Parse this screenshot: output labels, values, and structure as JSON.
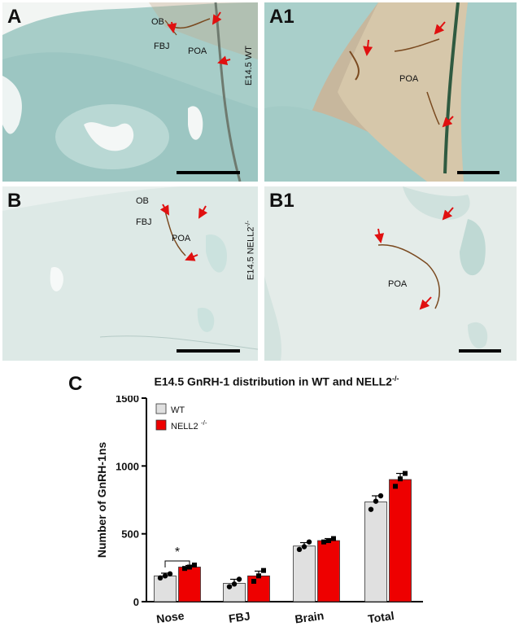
{
  "panels": {
    "A": {
      "letter": "A",
      "labels": {
        "ob": "OB",
        "fbj": "FBJ",
        "poa": "POA"
      },
      "side_label": "E14.5 WT"
    },
    "A1": {
      "letter": "A1",
      "labels": {
        "poa": "POA"
      }
    },
    "B": {
      "letter": "B",
      "labels": {
        "ob": "OB",
        "fbj": "FBJ",
        "poa": "POA"
      },
      "side_label": "E14.5 NELL2",
      "side_label_sup": "-/-"
    },
    "B1": {
      "letter": "B1",
      "labels": {
        "poa": "POA"
      }
    }
  },
  "colors": {
    "tissue_teal": "#9cc6c2",
    "tissue_pale": "#c9dedb",
    "background_pale": "#eef4f3",
    "stain_brown": "#7a4a20",
    "arrow_red": "#e01010",
    "wt_bar": "#e0e0e0",
    "nell2_bar": "#ee0000"
  },
  "chart": {
    "letter": "C",
    "title_main": "E14.5 GnRH-1 distribution in WT and NELL2",
    "title_sup": "-/-"
  },
  "chart_data": {
    "type": "bar",
    "title": "E14.5 GnRH-1 distribution in WT and NELL2 -/-",
    "ylabel": "Number of GnRH-1ns",
    "xlabel": "",
    "categories": [
      "Nose",
      "FBJ",
      "Brain",
      "Total"
    ],
    "ylim": [
      0,
      1500
    ],
    "yticks": [
      0,
      500,
      1000,
      1500
    ],
    "series": [
      {
        "name": "WT",
        "values": [
          190,
          135,
          410,
          735
        ],
        "errors": [
          20,
          30,
          25,
          45
        ],
        "points": [
          [
            175,
            205,
            190
          ],
          [
            110,
            165,
            130
          ],
          [
            385,
            440,
            405
          ],
          [
            680,
            780,
            740
          ]
        ]
      },
      {
        "name": "NELL2-/-",
        "values": [
          255,
          190,
          450,
          900
        ],
        "errors": [
          12,
          35,
          15,
          45
        ],
        "points": [
          [
            245,
            270,
            255
          ],
          [
            150,
            230,
            190
          ],
          [
            440,
            465,
            450
          ],
          [
            850,
            945,
            905
          ]
        ]
      }
    ],
    "legend": {
      "position": "top-left",
      "entries": [
        "WT",
        "NELL2",
        "-/-"
      ]
    },
    "significance": [
      {
        "category": "Nose",
        "label": "*"
      }
    ],
    "grid": false
  }
}
